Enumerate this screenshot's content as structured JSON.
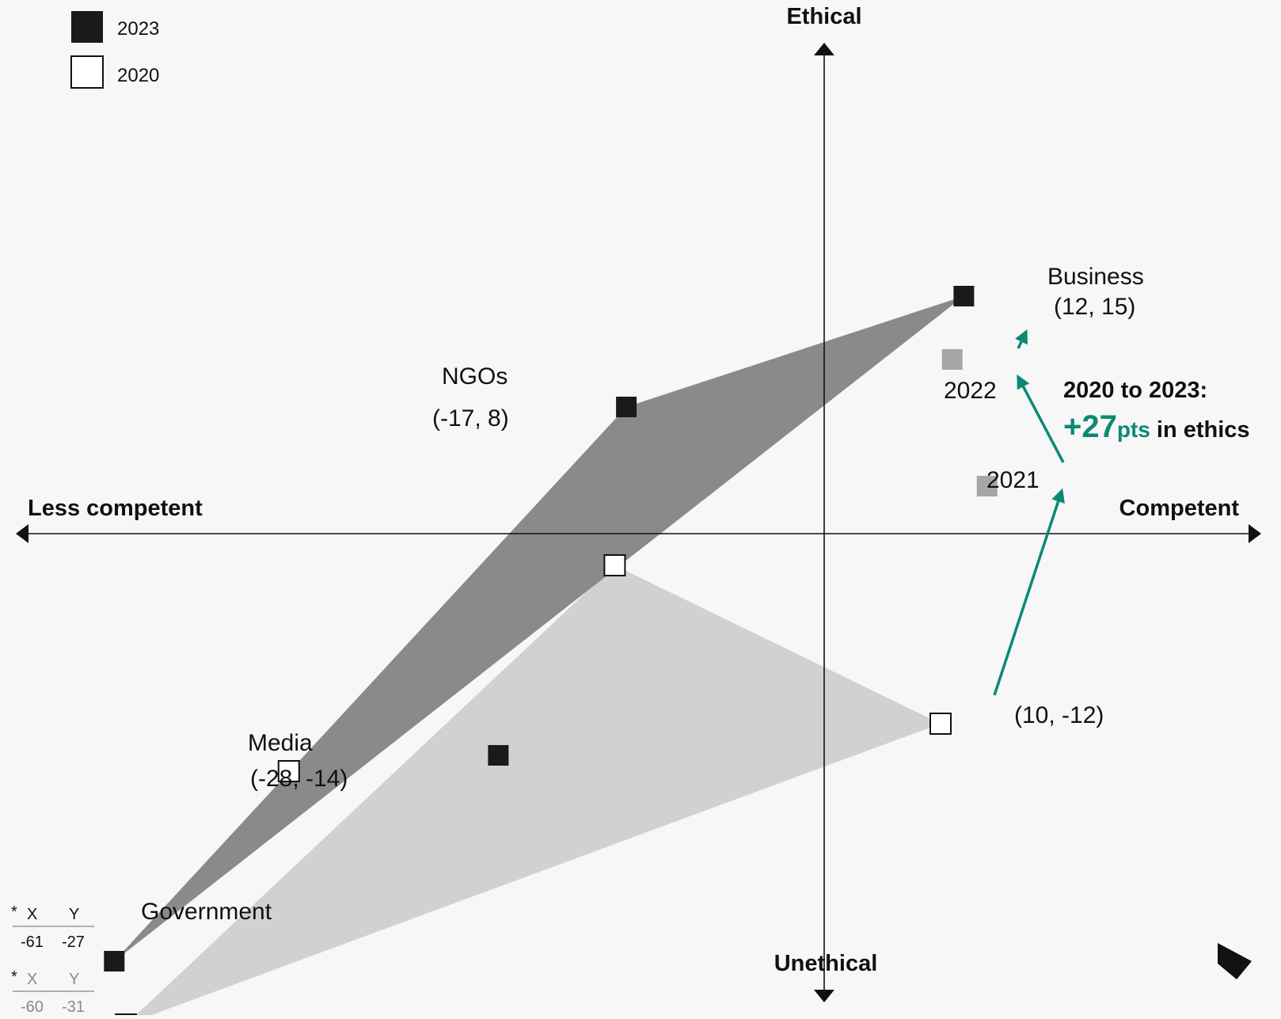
{
  "legend": {
    "label_2023": "2023",
    "label_2020": "2020"
  },
  "axes": {
    "top": "Ethical",
    "bottom": "Unethical",
    "left": "Less competent",
    "right": "Competent"
  },
  "chart_data": {
    "type": "scatter",
    "series": [
      {
        "name": "2023",
        "color": "#1a1a1a",
        "points": [
          {
            "label": "Business",
            "x": 12,
            "y": 15,
            "coord_text": "(12, 15)"
          },
          {
            "label": "NGOs",
            "x": -17,
            "y": 8,
            "coord_text": "(-17, 8)"
          },
          {
            "label": "Media",
            "x": -28,
            "y": -14,
            "coord_text": "(-28, -14)"
          },
          {
            "label": "Government",
            "x": -61,
            "y": -27
          }
        ]
      },
      {
        "name": "2020",
        "color": "#ffffff",
        "points": [
          {
            "label": "Business",
            "x": 10,
            "y": -12,
            "coord_text": "(10, -12)"
          },
          {
            "label": "NGOs",
            "x": -18,
            "y": -2
          },
          {
            "label": "Media",
            "x": -46,
            "y": -15
          },
          {
            "label": "Government",
            "x": -60,
            "y": -31
          }
        ]
      }
    ],
    "intermediate_points": [
      {
        "label": "2021",
        "x": 14,
        "y": 3
      },
      {
        "label": "2022",
        "x": 11,
        "y": 11
      }
    ],
    "government_table": {
      "header_x": "X",
      "header_y": "Y",
      "marker": "*",
      "row_2023": {
        "x": "-61",
        "y": "-27"
      },
      "row_2020": {
        "x": "-60",
        "y": "-31"
      }
    },
    "annotation": {
      "line1": "2020 to 2023:",
      "value": "+27",
      "unit": "pts",
      "suffix": " in ethics"
    },
    "polygon_colors": {
      "fill_2023": "#808080",
      "fill_2020": "#c4c4c4"
    },
    "accent_color": "#0b8a73"
  }
}
